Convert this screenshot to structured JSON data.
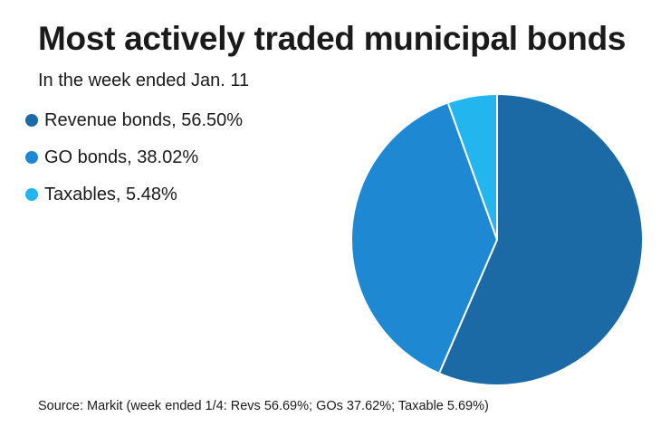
{
  "header": {
    "title": "Most actively traded municipal bonds",
    "subtitle": "In the week ended Jan. 11"
  },
  "legend": {
    "items": [
      {
        "label": "Revenue bonds, 56.50%",
        "color": "#1b6aa5"
      },
      {
        "label": "GO bonds, 38.02%",
        "color": "#1e88d3"
      },
      {
        "label": "Taxables, 5.48%",
        "color": "#22b5ee"
      }
    ]
  },
  "footer": {
    "source": "Source: Markit (week ended 1/4: Revs 56.69%; GOs 37.62%; Taxable 5.69%)"
  },
  "chart_data": {
    "type": "pie",
    "title": "Most actively traded municipal bonds",
    "subtitle": "In the week ended Jan. 11",
    "categories": [
      "Revenue bonds",
      "GO bonds",
      "Taxables"
    ],
    "values": [
      56.5,
      38.02,
      5.48
    ],
    "colors": [
      "#1b6aa5",
      "#1e88d3",
      "#22b5ee"
    ],
    "slice_border_color": "#ffffff",
    "legend_position": "left"
  }
}
